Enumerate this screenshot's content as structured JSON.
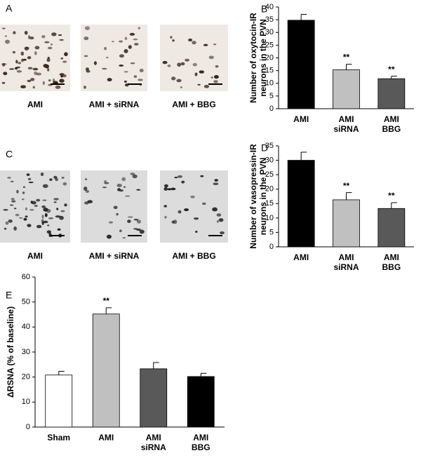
{
  "figure": {
    "micrographs": [
      {
        "panel_label": "A",
        "captions": [
          "AMI",
          "AMI + siRNA",
          "AMI + BBG"
        ]
      },
      {
        "panel_label": "C",
        "captions": [
          "AMI",
          "AMI + siRNA",
          "AMI + BBG"
        ]
      }
    ]
  },
  "chart_data": [
    {
      "type": "bar",
      "panel_label": "B",
      "ylabel": [
        "Number of oxytocin-IR",
        "neurons in the PVN"
      ],
      "categories": [
        "AMI",
        "AMI siRNA",
        "AMI BBG"
      ],
      "values": [
        34.8,
        15.3,
        11.8
      ],
      "errors": [
        2.3,
        2.2,
        1.0
      ],
      "colors": [
        "#000000",
        "#c0c0c0",
        "#595959"
      ],
      "ylim": [
        0,
        40
      ],
      "yticks": [
        0,
        5,
        10,
        15,
        20,
        25,
        30,
        35,
        40
      ],
      "annotations": [
        {
          "category": "AMI siRNA",
          "text": "**"
        },
        {
          "category": "AMI BBG",
          "text": "**"
        }
      ]
    },
    {
      "type": "bar",
      "panel_label": "D",
      "ylabel": [
        "Number of vasopressin-IR",
        "neurons in the PVN"
      ],
      "categories": [
        "AMI",
        "AMI siRNA",
        "AMI BBG"
      ],
      "values": [
        30,
        16.3,
        13.3
      ],
      "errors": [
        2.8,
        2.5,
        2.0
      ],
      "colors": [
        "#000000",
        "#c0c0c0",
        "#595959"
      ],
      "ylim": [
        0,
        35
      ],
      "yticks": [
        0,
        5,
        10,
        15,
        20,
        25,
        30,
        35
      ],
      "annotations": [
        {
          "category": "AMI siRNA",
          "text": "**"
        },
        {
          "category": "AMI BBG",
          "text": "**"
        }
      ]
    },
    {
      "type": "bar",
      "panel_label": "E",
      "ylabel": [
        "ΔRSNA (% of baseline)"
      ],
      "categories": [
        "Sham",
        "AMI",
        "AMI siRNA",
        "AMI BBG"
      ],
      "values": [
        20.8,
        45.2,
        23.3,
        20.2
      ],
      "errors": [
        1.5,
        2.5,
        2.5,
        1.3
      ],
      "colors": [
        "#ffffff",
        "#c0c0c0",
        "#595959",
        "#000000"
      ],
      "ylim": [
        0,
        60
      ],
      "yticks": [
        0,
        10,
        20,
        30,
        40,
        50,
        60
      ],
      "annotations": [
        {
          "category": "AMI",
          "text": "**"
        }
      ]
    }
  ]
}
